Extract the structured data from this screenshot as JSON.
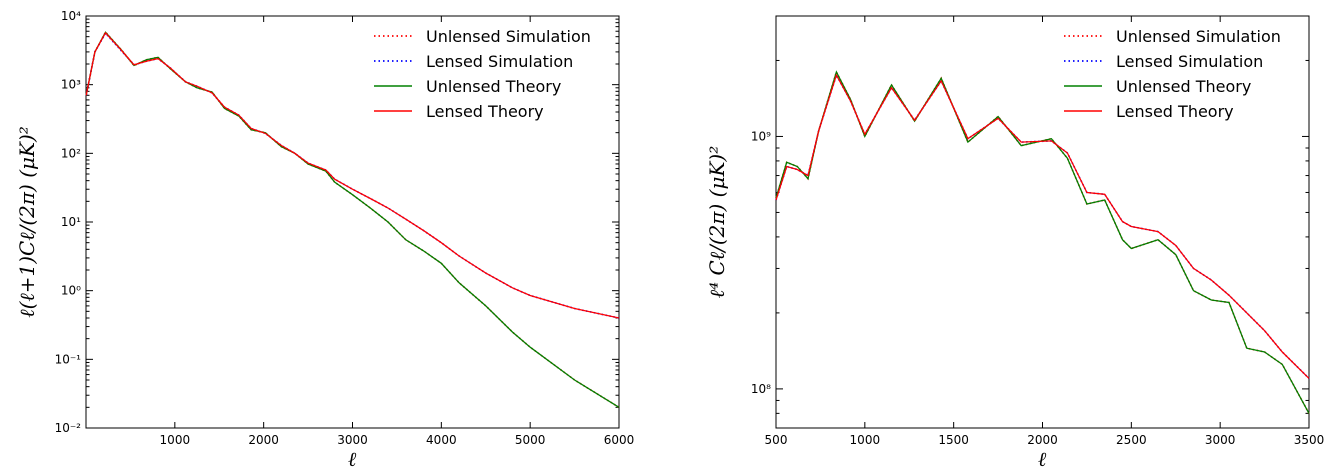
{
  "chart_data": [
    {
      "type": "line",
      "yscale": "log",
      "xlim": [
        0,
        6000
      ],
      "ylim": [
        0.01,
        10000
      ],
      "xlabel": "ℓ",
      "ylabel": "ℓ(ℓ+1)Cℓ/(2π) (μK)²",
      "xticks": [
        "1000",
        "2000",
        "3000",
        "4000",
        "5000",
        "6000"
      ],
      "yticks": [
        "10⁻²",
        "10⁻¹",
        "10⁰",
        "10¹",
        "10²",
        "10³",
        "10⁴"
      ],
      "legend_position": "top-right",
      "series": [
        {
          "name": "Unlensed Simulation",
          "style": "dotted",
          "color": "#ff0000",
          "x": [
            2,
            100,
            220,
            400,
            540,
            680,
            810,
            950,
            1120,
            1250,
            1420,
            1560,
            1720,
            1860,
            2020,
            2200,
            2350,
            2500,
            2700,
            2800,
            3000,
            3200,
            3400,
            3600,
            3800,
            4000,
            4200,
            4500,
            4800,
            5000,
            5500,
            6000
          ],
          "y": [
            700,
            3000,
            5800,
            3200,
            1900,
            2300,
            2500,
            1700,
            1100,
            900,
            780,
            450,
            350,
            220,
            200,
            125,
            100,
            70,
            55,
            38,
            25,
            16,
            10,
            5.5,
            3.8,
            2.5,
            1.3,
            0.6,
            0.25,
            0.15,
            0.05,
            0.02
          ]
        },
        {
          "name": "Lensed Simulation",
          "style": "dotted",
          "color": "#0000ff",
          "x": [
            2,
            100,
            220,
            400,
            540,
            680,
            810,
            950,
            1120,
            1250,
            1420,
            1560,
            1720,
            1860,
            2020,
            2200,
            2350,
            2500,
            2700,
            2800,
            3000,
            3200,
            3400,
            3600,
            3800,
            4000,
            4200,
            4500,
            4800,
            5000,
            5500,
            6000
          ],
          "y": [
            700,
            3000,
            5600,
            3100,
            1950,
            2200,
            2400,
            1750,
            1100,
            950,
            760,
            470,
            360,
            230,
            195,
            130,
            100,
            72,
            57,
            42,
            30,
            22,
            16,
            11,
            7.5,
            5,
            3.2,
            1.8,
            1.1,
            0.85,
            0.55,
            0.4
          ]
        },
        {
          "name": "Unlensed Theory",
          "style": "solid",
          "color": "#008000",
          "x": [
            2,
            100,
            220,
            400,
            540,
            680,
            810,
            950,
            1120,
            1250,
            1420,
            1560,
            1720,
            1860,
            2020,
            2200,
            2350,
            2500,
            2700,
            2800,
            3000,
            3200,
            3400,
            3600,
            3800,
            4000,
            4200,
            4500,
            4800,
            5000,
            5500,
            6000
          ],
          "y": [
            700,
            3000,
            5800,
            3200,
            1900,
            2300,
            2500,
            1700,
            1100,
            900,
            780,
            450,
            350,
            220,
            200,
            125,
            100,
            70,
            55,
            38,
            25,
            16,
            10,
            5.5,
            3.8,
            2.5,
            1.3,
            0.6,
            0.25,
            0.15,
            0.05,
            0.02
          ]
        },
        {
          "name": "Lensed Theory",
          "style": "solid",
          "color": "#ff0000",
          "x": [
            2,
            100,
            220,
            400,
            540,
            680,
            810,
            950,
            1120,
            1250,
            1420,
            1560,
            1720,
            1860,
            2020,
            2200,
            2350,
            2500,
            2700,
            2800,
            3000,
            3200,
            3400,
            3600,
            3800,
            4000,
            4200,
            4500,
            4800,
            5000,
            5500,
            6000
          ],
          "y": [
            700,
            3000,
            5700,
            3150,
            1950,
            2200,
            2400,
            1750,
            1100,
            950,
            760,
            470,
            360,
            230,
            195,
            130,
            100,
            72,
            57,
            42,
            30,
            22,
            16,
            11,
            7.5,
            5,
            3.2,
            1.8,
            1.1,
            0.85,
            0.55,
            0.4
          ]
        }
      ]
    },
    {
      "type": "line",
      "yscale": "log",
      "xlim": [
        500,
        3500
      ],
      "ylim": [
        70000000,
        3000000000
      ],
      "xlabel": "ℓ",
      "ylabel": "ℓ⁴ Cℓ/(2π) (μK)²",
      "xticks": [
        "500",
        "1000",
        "1500",
        "2000",
        "2500",
        "3000",
        "3500"
      ],
      "yticks": [
        "10⁸",
        "10⁹"
      ],
      "legend_position": "top-right",
      "series": [
        {
          "name": "Unlensed Simulation",
          "style": "dotted",
          "color": "#ff0000",
          "x": [
            500,
            560,
            620,
            680,
            740,
            840,
            920,
            1000,
            1150,
            1280,
            1430,
            1580,
            1750,
            1880,
            2050,
            2140,
            2250,
            2350,
            2450,
            2500,
            2650,
            2750,
            2850,
            2950,
            3050,
            3150,
            3250,
            3350,
            3500
          ],
          "y": [
            570000000,
            790000000,
            760000000,
            680000000,
            1050000000,
            1800000000,
            1400000000,
            1000000000,
            1600000000,
            1150000000,
            1700000000,
            950000000,
            1200000000,
            920000000,
            980000000,
            820000000,
            540000000,
            560000000,
            390000000,
            360000000,
            390000000,
            340000000,
            245000000,
            225000000,
            220000000,
            145000000,
            140000000,
            125000000,
            80000000
          ]
        },
        {
          "name": "Lensed Simulation",
          "style": "dotted",
          "color": "#0000ff",
          "x": [
            500,
            560,
            620,
            680,
            740,
            840,
            920,
            1000,
            1150,
            1280,
            1430,
            1580,
            1750,
            1880,
            2050,
            2140,
            2250,
            2350,
            2450,
            2500,
            2650,
            2750,
            2850,
            2950,
            3050,
            3150,
            3250,
            3350,
            3500
          ],
          "y": [
            560000000,
            760000000,
            740000000,
            700000000,
            1050000000,
            1750000000,
            1380000000,
            1020000000,
            1560000000,
            1160000000,
            1660000000,
            980000000,
            1180000000,
            950000000,
            960000000,
            860000000,
            600000000,
            590000000,
            460000000,
            440000000,
            420000000,
            370000000,
            300000000,
            270000000,
            235000000,
            200000000,
            170000000,
            140000000,
            110000000
          ]
        },
        {
          "name": "Unlensed Theory",
          "style": "solid",
          "color": "#008000",
          "x": [
            500,
            560,
            620,
            680,
            740,
            840,
            920,
            1000,
            1150,
            1280,
            1430,
            1580,
            1750,
            1880,
            2050,
            2140,
            2250,
            2350,
            2450,
            2500,
            2650,
            2750,
            2850,
            2950,
            3050,
            3150,
            3250,
            3350,
            3500
          ],
          "y": [
            570000000,
            790000000,
            760000000,
            680000000,
            1050000000,
            1800000000,
            1400000000,
            1000000000,
            1600000000,
            1150000000,
            1700000000,
            950000000,
            1200000000,
            920000000,
            980000000,
            820000000,
            540000000,
            560000000,
            390000000,
            360000000,
            390000000,
            340000000,
            245000000,
            225000000,
            220000000,
            145000000,
            140000000,
            125000000,
            80000000
          ]
        },
        {
          "name": "Lensed Theory",
          "style": "solid",
          "color": "#ff0000",
          "x": [
            500,
            560,
            620,
            680,
            740,
            840,
            920,
            1000,
            1150,
            1280,
            1430,
            1580,
            1750,
            1880,
            2050,
            2140,
            2250,
            2350,
            2450,
            2500,
            2650,
            2750,
            2850,
            2950,
            3050,
            3150,
            3250,
            3350,
            3500
          ],
          "y": [
            560000000,
            760000000,
            740000000,
            700000000,
            1050000000,
            1750000000,
            1380000000,
            1020000000,
            1560000000,
            1160000000,
            1660000000,
            980000000,
            1180000000,
            950000000,
            960000000,
            860000000,
            600000000,
            590000000,
            460000000,
            440000000,
            420000000,
            370000000,
            300000000,
            270000000,
            235000000,
            200000000,
            170000000,
            140000000,
            110000000
          ]
        }
      ]
    }
  ]
}
